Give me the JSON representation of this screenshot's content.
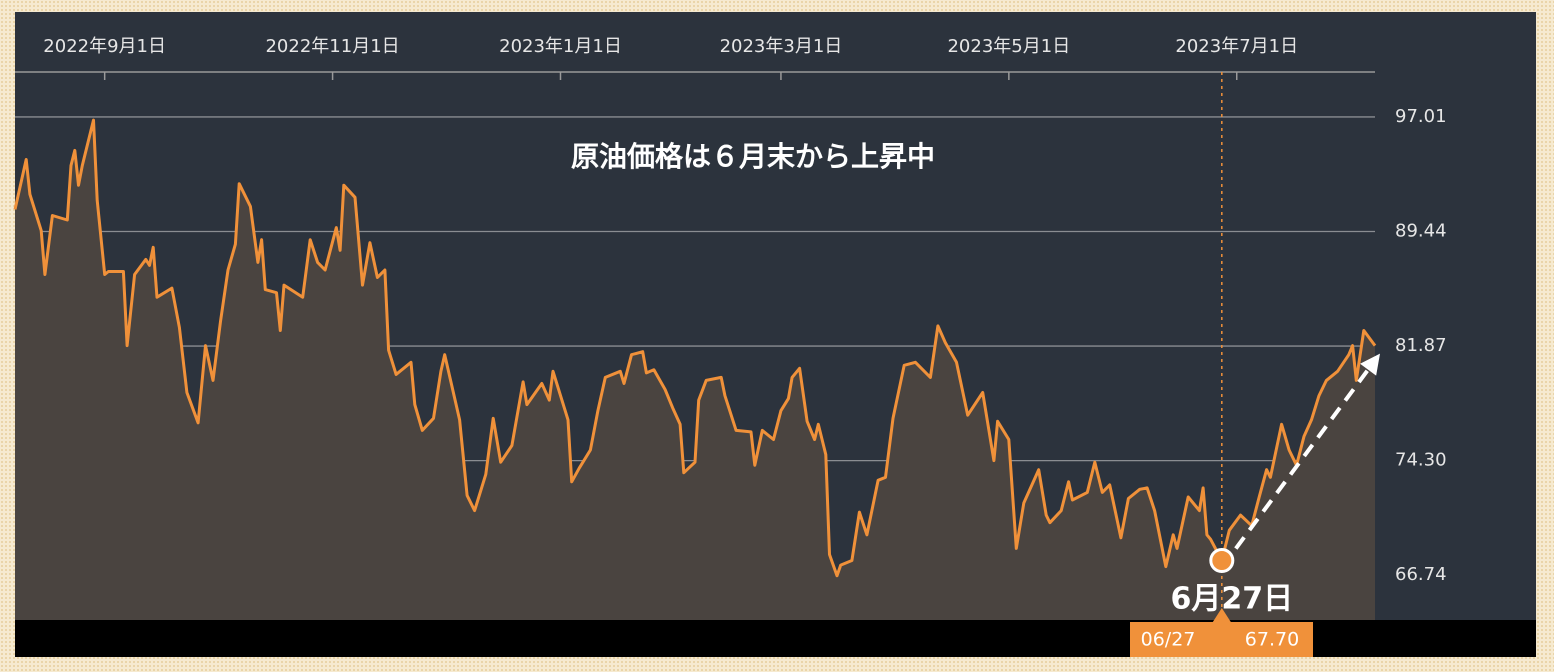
{
  "chart_data": {
    "type": "line",
    "annotation": "原油価格は６月末から上昇中",
    "color": "#f0913a",
    "area_color": "#4a4440",
    "grid": true,
    "xlim": [
      "2022-08-08",
      "2023-08-07"
    ],
    "xticks": [
      {
        "value": "2022-09-01",
        "label": "2022年9月1日"
      },
      {
        "value": "2022-11-01",
        "label": "2022年11月1日"
      },
      {
        "value": "2023-01-01",
        "label": "2023年1月1日"
      },
      {
        "value": "2023-03-01",
        "label": "2023年3月1日"
      },
      {
        "value": "2023-05-01",
        "label": "2023年5月1日"
      },
      {
        "value": "2023-07-01",
        "label": "2023年7月1日"
      }
    ],
    "ylim": [
      63.77,
      99.98
    ],
    "yticks": [
      66.74,
      {
        "value": 74.3,
        "label": "74.30"
      },
      81.87,
      89.44,
      97.01
    ],
    "x": [
      "2022-08-08",
      "2022-08-11",
      "2022-08-12",
      "2022-08-15",
      "2022-08-16",
      "2022-08-18",
      "2022-08-22",
      "2022-08-23",
      "2022-08-24",
      "2022-08-25",
      "2022-08-26",
      "2022-08-29",
      "2022-08-30",
      "2022-09-01",
      "2022-09-02",
      "2022-09-06",
      "2022-09-07",
      "2022-09-09",
      "2022-09-12",
      "2022-09-13",
      "2022-09-14",
      "2022-09-15",
      "2022-09-19",
      "2022-09-21",
      "2022-09-23",
      "2022-09-26",
      "2022-09-28",
      "2022-09-30",
      "2022-10-02",
      "2022-10-04",
      "2022-10-06",
      "2022-10-07",
      "2022-10-10",
      "2022-10-12",
      "2022-10-13",
      "2022-10-14",
      "2022-10-17",
      "2022-10-18",
      "2022-10-19",
      "2022-10-24",
      "2022-10-26",
      "2022-10-28",
      "2022-10-30",
      "2022-11-02",
      "2022-11-03",
      "2022-11-04",
      "2022-11-07",
      "2022-11-09",
      "2022-11-11",
      "2022-11-13",
      "2022-11-15",
      "2022-11-16",
      "2022-11-18",
      "2022-11-22",
      "2022-11-23",
      "2022-11-25",
      "2022-11-28",
      "2022-11-30",
      "2022-12-01",
      "2022-12-05",
      "2022-12-07",
      "2022-12-09",
      "2022-12-12",
      "2022-12-14",
      "2022-12-16",
      "2022-12-19",
      "2022-12-22",
      "2022-12-23",
      "2022-12-27",
      "2022-12-29",
      "2022-12-30",
      "2023-01-03",
      "2023-01-04",
      "2023-01-06",
      "2023-01-09",
      "2023-01-11",
      "2023-01-13",
      "2023-01-17",
      "2023-01-18",
      "2023-01-20",
      "2023-01-23",
      "2023-01-24",
      "2023-01-26",
      "2023-01-29",
      "2023-01-31",
      "2023-02-02",
      "2023-02-03",
      "2023-02-06",
      "2023-02-07",
      "2023-02-09",
      "2023-02-13",
      "2023-02-14",
      "2023-02-17",
      "2023-02-21",
      "2023-02-22",
      "2023-02-24",
      "2023-02-27",
      "2023-03-01",
      "2023-03-03",
      "2023-03-04",
      "2023-03-06",
      "2023-03-08",
      "2023-03-10",
      "2023-03-11",
      "2023-03-13",
      "2023-03-14",
      "2023-03-16",
      "2023-03-17",
      "2023-03-20",
      "2023-03-22",
      "2023-03-24",
      "2023-03-27",
      "2023-03-29",
      "2023-03-31",
      "2023-04-03",
      "2023-04-06",
      "2023-04-10",
      "2023-04-12",
      "2023-04-14",
      "2023-04-17",
      "2023-04-20",
      "2023-04-24",
      "2023-04-27",
      "2023-04-28",
      "2023-05-01",
      "2023-05-03",
      "2023-05-05",
      "2023-05-09",
      "2023-05-11",
      "2023-05-12",
      "2023-05-15",
      "2023-05-17",
      "2023-05-18",
      "2023-05-22",
      "2023-05-24",
      "2023-05-26",
      "2023-05-28",
      "2023-05-31",
      "2023-06-02",
      "2023-06-05",
      "2023-06-07",
      "2023-06-09",
      "2023-06-12",
      "2023-06-14",
      "2023-06-15",
      "2023-06-18",
      "2023-06-21",
      "2023-06-22",
      "2023-06-23",
      "2023-06-24",
      "2023-06-27",
      "2023-06-29",
      "2023-07-02",
      "2023-07-05",
      "2023-07-07",
      "2023-07-09",
      "2023-07-10",
      "2023-07-13",
      "2023-07-15",
      "2023-07-17",
      "2023-07-19",
      "2023-07-21",
      "2023-07-23",
      "2023-07-25",
      "2023-07-28",
      "2023-07-31",
      "2023-08-01",
      "2023-08-02",
      "2023-08-04",
      "2023-08-07"
    ],
    "values": [
      90.9,
      94.2,
      91.9,
      89.5,
      86.6,
      90.5,
      90.2,
      93.8,
      94.8,
      92.5,
      93.8,
      96.8,
      91.5,
      86.6,
      86.8,
      86.8,
      81.9,
      86.6,
      87.6,
      87.2,
      88.4,
      85.1,
      85.7,
      83.1,
      78.8,
      76.8,
      81.9,
      79.6,
      83.5,
      86.9,
      88.6,
      92.6,
      91.1,
      87.4,
      88.9,
      85.6,
      85.4,
      82.9,
      85.9,
      85.1,
      88.9,
      87.4,
      86.9,
      89.7,
      88.2,
      92.5,
      91.7,
      85.9,
      88.7,
      86.4,
      86.9,
      81.6,
      80.0,
      80.8,
      78.0,
      76.3,
      77.1,
      80.2,
      81.3,
      77.0,
      72.0,
      71.0,
      73.4,
      77.1,
      74.2,
      75.3,
      79.5,
      78.0,
      79.4,
      78.3,
      80.2,
      77.0,
      72.9,
      73.8,
      75.0,
      77.6,
      79.8,
      80.2,
      79.4,
      81.3,
      81.5,
      80.1,
      80.3,
      79.0,
      77.8,
      76.7,
      73.5,
      74.2,
      78.3,
      79.6,
      79.8,
      78.6,
      76.3,
      76.2,
      74.0,
      76.3,
      75.7,
      77.6,
      78.4,
      79.8,
      80.4,
      76.9,
      75.7,
      76.7,
      74.7,
      68.1,
      66.7,
      67.4,
      67.7,
      70.9,
      69.4,
      73.0,
      73.2,
      77.1,
      80.6,
      80.8,
      79.8,
      83.2,
      82.1,
      80.8,
      77.3,
      78.8,
      74.3,
      76.9,
      75.7,
      68.5,
      71.5,
      73.7,
      70.7,
      70.2,
      71.0,
      72.9,
      71.7,
      72.2,
      74.2,
      72.2,
      72.7,
      69.2,
      71.8,
      72.4,
      72.5,
      71.0,
      67.3,
      69.4,
      68.5,
      71.9,
      71.0,
      72.5,
      69.4,
      69.1,
      67.7,
      69.7,
      70.7,
      70.0,
      71.9,
      73.7,
      73.2,
      76.7,
      75.0,
      74.0,
      75.9,
      77.0,
      78.6,
      79.6,
      80.2,
      81.3,
      81.9,
      79.6,
      82.9,
      81.9
    ],
    "highlight": {
      "x": "2023-06-27",
      "value": 67.7,
      "label": "6月27日",
      "date_label": "06/27",
      "value_label": "67.70"
    }
  }
}
